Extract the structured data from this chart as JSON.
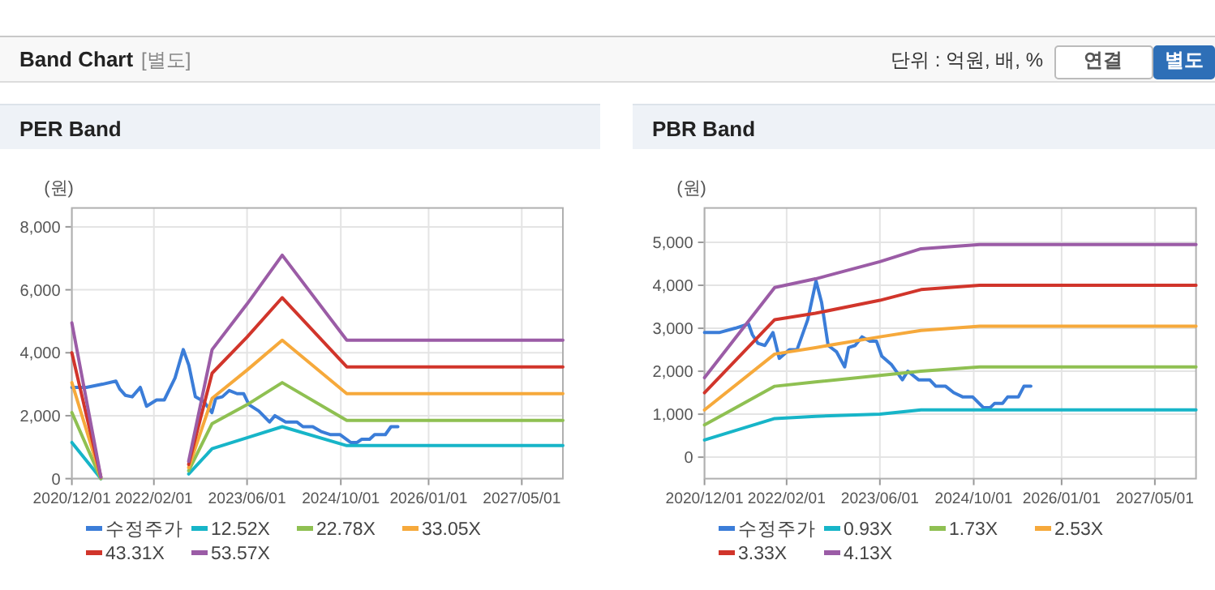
{
  "chart_data": [
    {
      "type": "line",
      "title": "PER Band",
      "ylabel": "(원)",
      "annotations": [
        "Band Chart",
        "[별도]",
        "단위 : 억원, 배, %",
        "연결",
        "별도"
      ],
      "x": [
        "2022-08-01",
        "2022-12-01",
        "2023-06-01",
        "2023-12-01",
        "2024-11-01",
        "2027-12-01"
      ],
      "xlim": [
        "2020-12-01",
        "2027-12-01"
      ],
      "xticks": [
        {
          "value": "2020-12-01",
          "label": "2020/12/01"
        },
        {
          "value": "2022-02-01",
          "label": "2022/02/01"
        },
        {
          "value": "2023-06-01",
          "label": "2023/06/01"
        },
        {
          "value": "2024-10-01",
          "label": "2024/10/01"
        },
        {
          "value": "2026-01-01",
          "label": "2026/01/01"
        },
        {
          "value": "2027-05-01",
          "label": "2027/05/01"
        }
      ],
      "ylim": [
        0,
        8600
      ],
      "yticks": [
        0,
        {
          "value": 2000,
          "label": "2,000"
        },
        {
          "value": 4000,
          "label": "4,000"
        },
        {
          "value": 6000,
          "label": "6,000"
        },
        {
          "value": 8000,
          "label": "8,000"
        }
      ],
      "grid": true,
      "legend": "bottom",
      "series": [
        {
          "name": "수정주가",
          "color": "#3b7dd8",
          "x": [
            "2020-12-01",
            "2021-02-15",
            "2021-05-09",
            "2021-07-18",
            "2021-08-07",
            "2021-09-05",
            "2021-10-11",
            "2021-11-22",
            "2021-12-25",
            "2022-02-15",
            "2022-03-27",
            "2022-05-22",
            "2022-07-04",
            "2022-08-02",
            "2022-09-05",
            "2022-10-19",
            "2022-11-30",
            "2022-12-20",
            "2023-01-23",
            "2023-02-28",
            "2023-04-10",
            "2023-05-14",
            "2023-06-11",
            "2023-08-01",
            "2023-09-26",
            "2023-10-24",
            "2023-12-19",
            "2024-02-15",
            "2024-03-18",
            "2024-05-08",
            "2024-06-19",
            "2024-08-06",
            "2024-09-26",
            "2024-11-21",
            "2024-12-25",
            "2025-01-17",
            "2025-02-28",
            "2025-03-26",
            "2025-05-21",
            "2025-06-19",
            "2025-07-25"
          ],
          "values": [
            2900,
            2900,
            3000,
            3100,
            2850,
            2650,
            2600,
            2900,
            2300,
            2500,
            2500,
            3200,
            4100,
            3600,
            2600,
            2450,
            2100,
            2550,
            2600,
            2800,
            2700,
            2700,
            2350,
            2150,
            1800,
            2000,
            1800,
            1800,
            1650,
            1650,
            1500,
            1400,
            1400,
            1150,
            1150,
            1250,
            1250,
            1400,
            1400,
            1650,
            1650
          ]
        },
        {
          "name": "12.52X",
          "color": "#17b5c8",
          "values": [
            150,
            950,
            1300,
            1650,
            1050,
            1050
          ]
        },
        {
          "name": "22.78X",
          "color": "#8fc052",
          "values": [
            250,
            1750,
            2350,
            3050,
            1850,
            1850
          ]
        },
        {
          "name": "33.05X",
          "color": "#f6a93b",
          "values": [
            350,
            2550,
            3450,
            4400,
            2700,
            2700
          ]
        },
        {
          "name": "43.31X",
          "color": "#d1352b",
          "values": [
            450,
            3350,
            4500,
            5750,
            3550,
            3550
          ]
        },
        {
          "name": "53.57X",
          "color": "#9b5ca6",
          "values": [
            550,
            4100,
            5550,
            7100,
            4400,
            4400
          ]
        },
        {
          "color": "#17b5c8",
          "x": [
            "2020-12-01",
            "2021-05-01"
          ],
          "values": [
            1150,
            0
          ]
        },
        {
          "color": "#8fc052",
          "x": [
            "2020-12-01",
            "2021-05-01"
          ],
          "values": [
            2100,
            0
          ]
        },
        {
          "color": "#f6a93b",
          "x": [
            "2020-12-01",
            "2021-05-01"
          ],
          "values": [
            3050,
            50
          ]
        },
        {
          "color": "#d1352b",
          "x": [
            "2020-12-01",
            "2021-05-01"
          ],
          "values": [
            4000,
            50
          ]
        },
        {
          "color": "#9b5ca6",
          "x": [
            "2020-12-01",
            "2021-05-01"
          ],
          "values": [
            4950,
            50
          ]
        }
      ]
    },
    {
      "type": "line",
      "title": "PBR Band",
      "ylabel": "(원)",
      "x": [
        "2020-12-01",
        "2021-12-01",
        "2022-07-01",
        "2023-06-01",
        "2024-01-01",
        "2024-11-01",
        "2027-12-01"
      ],
      "xlim": [
        "2020-12-01",
        "2027-12-01"
      ],
      "xticks": [
        {
          "value": "2020-12-01",
          "label": "2020/12/01"
        },
        {
          "value": "2022-02-01",
          "label": "2022/02/01"
        },
        {
          "value": "2023-06-01",
          "label": "2023/06/01"
        },
        {
          "value": "2024-10-01",
          "label": "2024/10/01"
        },
        {
          "value": "2026-01-01",
          "label": "2026/01/01"
        },
        {
          "value": "2027-05-01",
          "label": "2027/05/01"
        }
      ],
      "ylim": [
        -500,
        5800
      ],
      "yticks": [
        0,
        {
          "value": 1000,
          "label": "1,000"
        },
        {
          "value": 2000,
          "label": "2,000"
        },
        {
          "value": 3000,
          "label": "3,000"
        },
        {
          "value": 4000,
          "label": "4,000"
        },
        {
          "value": 5000,
          "label": "5,000"
        }
      ],
      "grid": true,
      "legend": "bottom",
      "series": [
        {
          "name": "수정주가",
          "color": "#3b7dd8",
          "x": [
            "2020-12-01",
            "2021-02-15",
            "2021-05-09",
            "2021-07-18",
            "2021-08-07",
            "2021-09-05",
            "2021-10-11",
            "2021-11-22",
            "2021-12-25",
            "2022-02-15",
            "2022-03-27",
            "2022-05-22",
            "2022-07-04",
            "2022-08-02",
            "2022-09-05",
            "2022-10-19",
            "2022-11-30",
            "2022-12-20",
            "2023-01-23",
            "2023-02-28",
            "2023-04-10",
            "2023-05-14",
            "2023-06-11",
            "2023-08-01",
            "2023-09-26",
            "2023-10-24",
            "2023-12-19",
            "2024-02-15",
            "2024-03-18",
            "2024-05-08",
            "2024-06-19",
            "2024-08-06",
            "2024-09-26",
            "2024-11-21",
            "2024-12-25",
            "2025-01-17",
            "2025-02-28",
            "2025-03-26",
            "2025-05-21",
            "2025-06-19",
            "2025-07-25"
          ],
          "values": [
            2900,
            2900,
            3000,
            3100,
            2850,
            2650,
            2600,
            2900,
            2300,
            2500,
            2500,
            3200,
            4100,
            3600,
            2600,
            2450,
            2100,
            2550,
            2600,
            2800,
            2700,
            2700,
            2350,
            2150,
            1800,
            2000,
            1800,
            1800,
            1650,
            1650,
            1500,
            1400,
            1400,
            1150,
            1150,
            1250,
            1250,
            1400,
            1400,
            1650,
            1650
          ]
        },
        {
          "name": "0.93X",
          "color": "#17b5c8",
          "values": [
            400,
            900,
            950,
            1000,
            1100,
            1100,
            1100
          ]
        },
        {
          "name": "1.73X",
          "color": "#8fc052",
          "values": [
            750,
            1650,
            1750,
            1900,
            2000,
            2100,
            2100
          ]
        },
        {
          "name": "2.53X",
          "color": "#f6a93b",
          "values": [
            1100,
            2400,
            2550,
            2800,
            2950,
            3050,
            3050
          ]
        },
        {
          "name": "3.33X",
          "color": "#d1352b",
          "values": [
            1500,
            3200,
            3350,
            3650,
            3900,
            4000,
            4000
          ]
        },
        {
          "name": "4.13X",
          "color": "#9b5ca6",
          "values": [
            1850,
            3950,
            4150,
            4550,
            4850,
            4950,
            4950
          ]
        }
      ]
    }
  ]
}
